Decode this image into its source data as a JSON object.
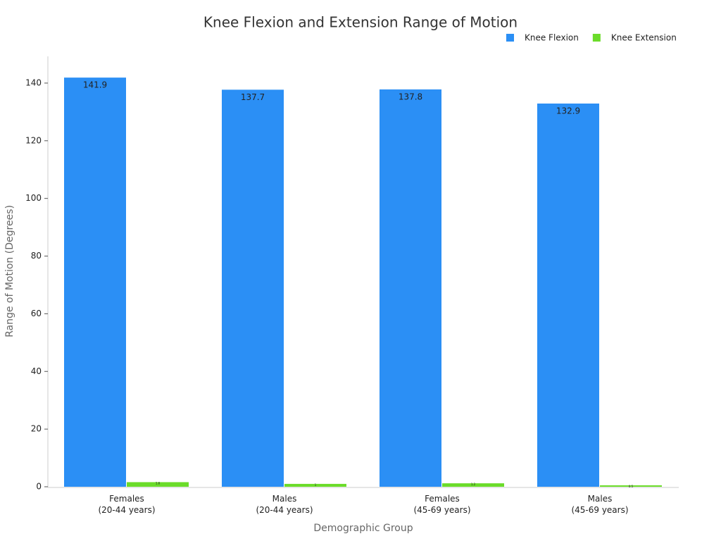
{
  "chart_data": {
    "type": "bar",
    "title": "Knee Flexion and Extension Range of Motion",
    "x_label": "Demographic Group",
    "y_label": "Range of Motion (Degrees)",
    "categories": [
      "Females\n(20-44 years)",
      "Males\n(20-44 years)",
      "Females\n(45-69 years)",
      "Males\n(45-69 years)"
    ],
    "series": [
      {
        "name": "Knee Flexion",
        "color": "#2b8ff5",
        "values": [
          141.9,
          137.7,
          137.8,
          132.9
        ]
      },
      {
        "name": "Knee Extension",
        "color": "#6bdc2a",
        "values": [
          1.6,
          1.0,
          1.2,
          0.5
        ]
      }
    ],
    "ylim": [
      0,
      150
    ],
    "yticks": [
      0,
      20,
      40,
      60,
      80,
      100,
      120,
      140
    ],
    "grid": false,
    "legend": "top-right"
  }
}
